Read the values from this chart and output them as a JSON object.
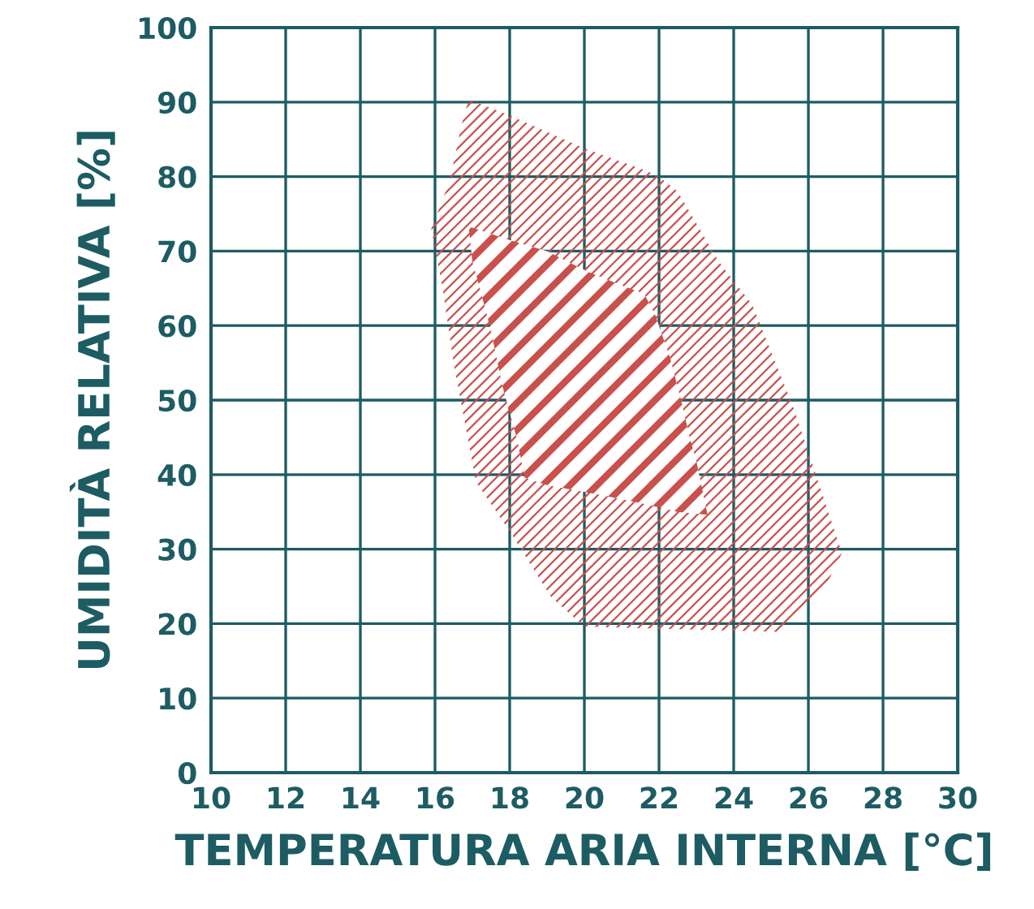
{
  "chart_data": {
    "type": "area",
    "xlabel": "TEMPERATURA ARIA INTERNA [°C]",
    "ylabel": "UMIDITÀ RELATIVA [%]",
    "xlim": [
      10,
      30
    ],
    "ylim": [
      0,
      100
    ],
    "xticks": [
      10,
      12,
      14,
      16,
      18,
      20,
      22,
      24,
      26,
      28,
      30
    ],
    "yticks": [
      0,
      10,
      20,
      30,
      40,
      50,
      60,
      70,
      80,
      90,
      100
    ],
    "grid": true,
    "series": [
      {
        "color": "#c9504c",
        "x": [
          16.9,
          18.0,
          20.0,
          21.6,
          22.0,
          22.5,
          23.6,
          24.5,
          25.6,
          26.8,
          26.9,
          26.4,
          25.2,
          20.0,
          19.1,
          18.0,
          17.1,
          16.5,
          16.2,
          15.9,
          16.4,
          16.7
        ],
        "values": [
          90.4,
          88.2,
          83.8,
          80.9,
          80,
          78,
          68.6,
          62.8,
          49,
          31,
          29.5,
          24.4,
          18.9,
          19.6,
          23.6,
          32.4,
          39,
          54.9,
          65.1,
          73,
          79.5,
          86.7
        ]
      },
      {
        "color": "#c9504c",
        "x": [
          16.9,
          18.0,
          19.0,
          20.1,
          21.0,
          21.6,
          21.9,
          22.3,
          22.6,
          22.8,
          23.0,
          23.3,
          22.5,
          21.5,
          20.4,
          19.0,
          18.4,
          18.2,
          17.8,
          17.5,
          17.2,
          17.0
        ],
        "values": [
          73.3,
          71.5,
          70,
          67.2,
          65.4,
          64.3,
          61.4,
          55.6,
          49.8,
          45.4,
          41.8,
          34.6,
          35,
          36.2,
          37.3,
          38.6,
          39.6,
          44.7,
          52,
          59.3,
          65,
          68.6
        ]
      }
    ]
  }
}
